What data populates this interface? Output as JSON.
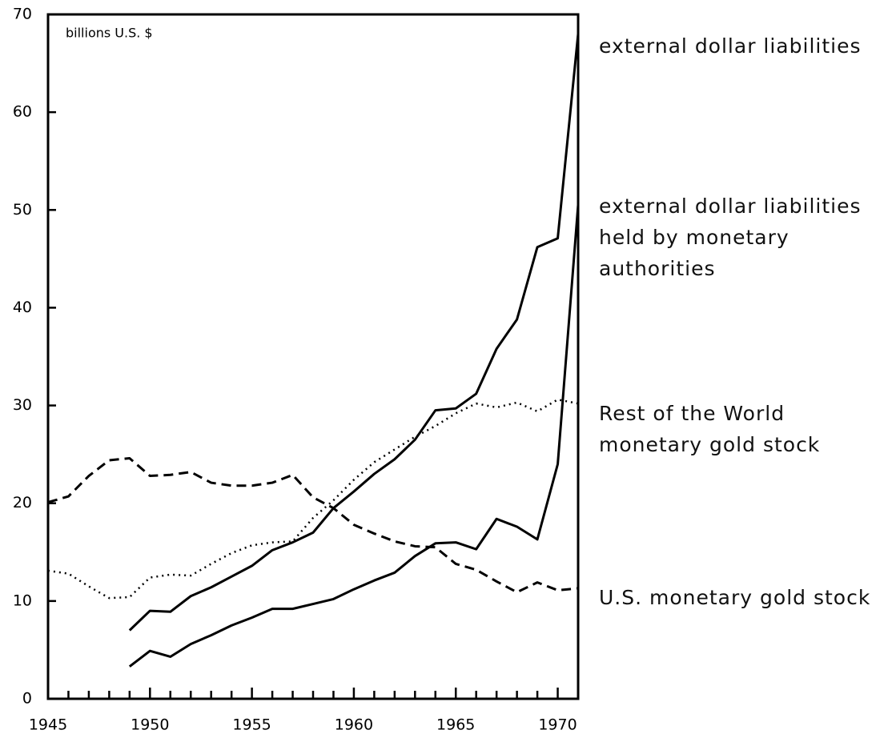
{
  "chart_data": {
    "type": "line",
    "y_axis_label": "billions U.S. $",
    "x": [
      1945,
      1946,
      1947,
      1948,
      1949,
      1950,
      1951,
      1952,
      1953,
      1954,
      1955,
      1956,
      1957,
      1958,
      1959,
      1960,
      1961,
      1962,
      1963,
      1964,
      1965,
      1966,
      1967,
      1968,
      1969,
      1970,
      1971
    ],
    "series": [
      {
        "name": "external dollar liabilities",
        "color": "#000000",
        "linestyle": "solid",
        "values": [
          null,
          null,
          null,
          null,
          7.0,
          9.0,
          8.9,
          10.5,
          11.4,
          12.5,
          13.6,
          15.2,
          16.0,
          17.0,
          19.5,
          21.2,
          23.0,
          24.5,
          26.5,
          29.5,
          29.7,
          31.2,
          35.8,
          38.8,
          46.2,
          47.1,
          68.0
        ]
      },
      {
        "name": "external dollar liabilities held by monetary authorities",
        "color": "#000000",
        "linestyle": "solid",
        "values": [
          null,
          null,
          null,
          null,
          3.3,
          4.9,
          4.3,
          5.6,
          6.5,
          7.5,
          8.3,
          9.2,
          9.2,
          9.7,
          10.2,
          11.2,
          12.1,
          12.9,
          14.6,
          15.9,
          16.0,
          15.3,
          18.4,
          17.6,
          16.3,
          24.0,
          50.5
        ]
      },
      {
        "name": "Rest of the World monetary gold stock",
        "color": "#000000",
        "linestyle": "dotted",
        "values": [
          13.1,
          12.8,
          11.5,
          10.3,
          10.4,
          12.4,
          12.7,
          12.6,
          13.8,
          14.9,
          15.7,
          16.0,
          16.1,
          18.5,
          20.3,
          22.4,
          24.2,
          25.5,
          26.8,
          27.9,
          29.2,
          30.2,
          29.8,
          30.3,
          29.4,
          30.6,
          30.2
        ]
      },
      {
        "name": "U.S. monetary gold stock",
        "color": "#000000",
        "linestyle": "dashed",
        "values": [
          20.1,
          20.7,
          22.8,
          24.4,
          24.6,
          22.8,
          22.9,
          23.2,
          22.1,
          21.8,
          21.8,
          22.1,
          22.9,
          20.6,
          19.5,
          17.8,
          16.9,
          16.1,
          15.6,
          15.5,
          13.8,
          13.2,
          12.0,
          10.9,
          11.9,
          11.1,
          11.3
        ]
      }
    ],
    "xlim": [
      1945,
      1971
    ],
    "xticks": [
      1945,
      1950,
      1955,
      1960,
      1965,
      1970
    ],
    "xminorticks": [
      1946,
      1947,
      1948,
      1949,
      1951,
      1952,
      1953,
      1954,
      1956,
      1957,
      1958,
      1959,
      1961,
      1962,
      1963,
      1964,
      1966,
      1967,
      1968,
      1969,
      1971
    ],
    "ylim": [
      0,
      70
    ],
    "yticks": [
      0,
      10,
      20,
      30,
      40,
      50,
      60,
      70
    ],
    "grid": false
  }
}
